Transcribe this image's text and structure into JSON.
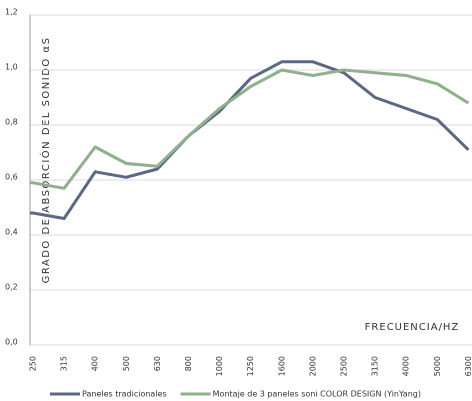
{
  "chart_data": {
    "type": "line",
    "y_label": "GRADO DE ABSORCIÓN DEL SONIDO αS",
    "x_label": "FRECUENCIA/HZ",
    "categories": [
      "250",
      "315",
      "400",
      "500",
      "630",
      "800",
      "1000",
      "1250",
      "1600",
      "2000",
      "2500",
      "3150",
      "4000",
      "5000",
      "6300"
    ],
    "series": [
      {
        "name": "Paneles tradicionales",
        "color": "#5b6885",
        "values": [
          0.48,
          0.46,
          0.63,
          0.61,
          0.64,
          0.76,
          0.85,
          0.97,
          1.03,
          1.03,
          0.99,
          0.9,
          0.86,
          0.82,
          0.71
        ]
      },
      {
        "name": "Montaje de 3 paneles soni COLOR DESIGN (YinYang)",
        "color": "#8fb08a",
        "values": [
          0.59,
          0.57,
          0.72,
          0.66,
          0.65,
          0.76,
          0.86,
          0.94,
          1.0,
          0.98,
          1.0,
          0.99,
          0.98,
          0.95,
          0.88
        ]
      }
    ],
    "ylim": [
      0,
      1.2
    ],
    "yticks": [
      {
        "value": 0,
        "label": "0,0"
      },
      {
        "value": 0.2,
        "label": "0,2"
      },
      {
        "value": 0.4,
        "label": "0,4"
      },
      {
        "value": 0.6,
        "label": "0,6"
      },
      {
        "value": 0.8,
        "label": "0,8"
      },
      {
        "value": 1.0,
        "label": "1,0"
      },
      {
        "value": 1.2,
        "label": "1,2"
      }
    ],
    "grid": true
  }
}
